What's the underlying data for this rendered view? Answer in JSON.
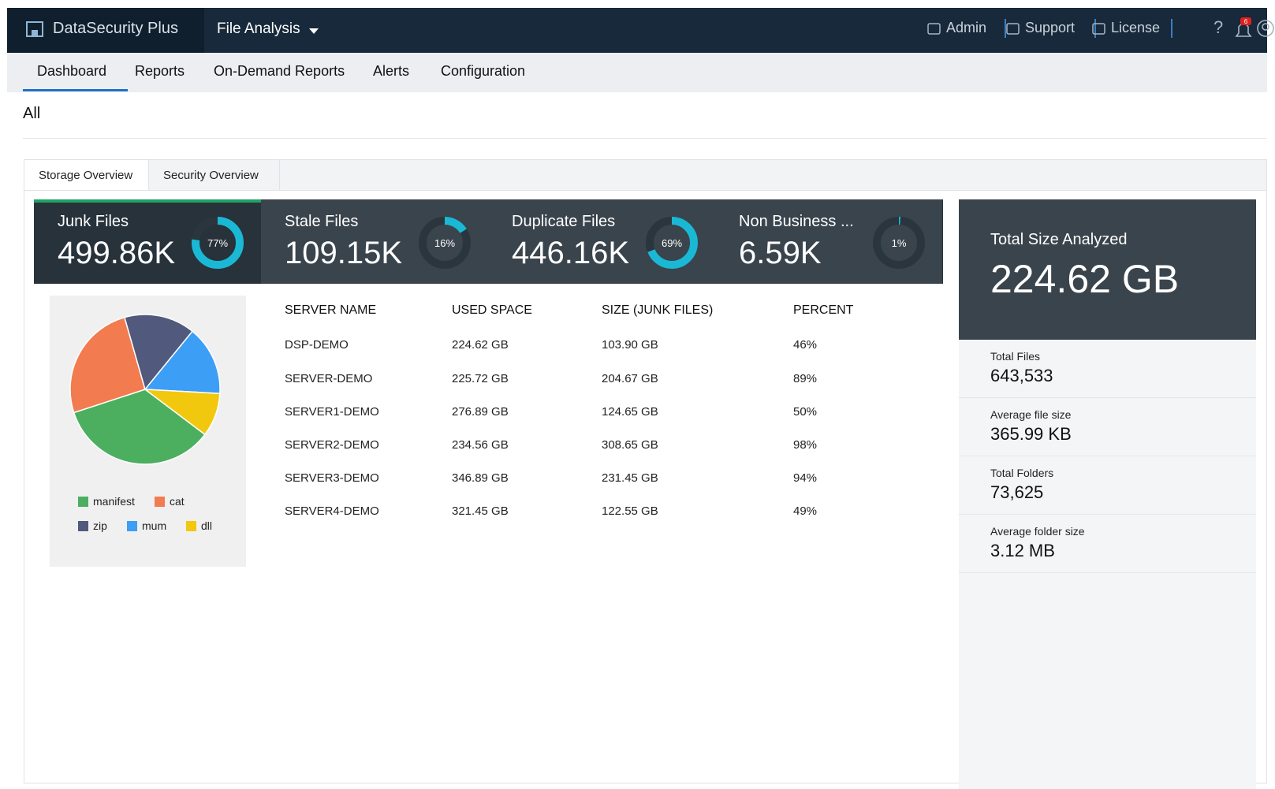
{
  "header": {
    "brand": "DataSecurity Plus",
    "module": "File Analysis",
    "links": [
      "Admin",
      "Support",
      "License"
    ],
    "notification_count": "6"
  },
  "nav": {
    "tabs": [
      "Dashboard",
      "Reports",
      "On-Demand Reports",
      "Alerts",
      "Configuration"
    ]
  },
  "scope": "All",
  "subtabs": [
    "Storage Overview",
    "Security Overview"
  ],
  "cards": [
    {
      "title": "Junk Files",
      "value": "499.86K",
      "percent": {
        "value": 77,
        "label": "77%"
      }
    },
    {
      "title": "Stale Files",
      "value": "109.15K",
      "percent": {
        "value": 16,
        "label": "16%"
      }
    },
    {
      "title": "Duplicate Files",
      "value": "446.16K",
      "percent": {
        "value": 69,
        "label": "69%"
      }
    },
    {
      "title": "Non Business ...",
      "value": "6.59K",
      "percent": {
        "value": 1,
        "label": "1%"
      }
    }
  ],
  "pie_chart": {
    "type": "pie",
    "categories": [
      "manifest",
      "cat",
      "zip",
      "mum",
      "dll"
    ],
    "values": [
      34.7,
      25.6,
      15.3,
      15,
      9.4
    ],
    "colors": [
      "#4caf5f",
      "#f27b50",
      "#515a7c",
      "#3d9ef5",
      "#f2c80f"
    ]
  },
  "table": {
    "columns": [
      "SERVER NAME",
      "USED SPACE",
      "SIZE (JUNK FILES)",
      "PERCENT"
    ],
    "rows": [
      [
        "DSP-DEMO",
        "224.62 GB",
        "103.90 GB",
        "46%"
      ],
      [
        "SERVER-DEMO",
        "225.72 GB",
        "204.67 GB",
        "89%"
      ],
      [
        "SERVER1-DEMO",
        "276.89 GB",
        "124.65 GB",
        "50%"
      ],
      [
        "SERVER2-DEMO",
        "234.56 GB",
        "308.65 GB",
        "98%"
      ],
      [
        "SERVER3-DEMO",
        "346.89 GB",
        "231.45 GB",
        "94%"
      ],
      [
        "SERVER4-DEMO",
        "321.45 GB",
        "122.55 GB",
        "49%"
      ]
    ]
  },
  "summary": {
    "title": "Total Size Analyzed",
    "value": "224.62 GB",
    "stats": [
      {
        "label": "Total Files",
        "value": "643,533"
      },
      {
        "label": "Average file size",
        "value": "365.99 KB"
      },
      {
        "label": "Total Folders",
        "value": "73,625"
      },
      {
        "label": "Average folder size",
        "value": "3.12 MB"
      }
    ]
  }
}
